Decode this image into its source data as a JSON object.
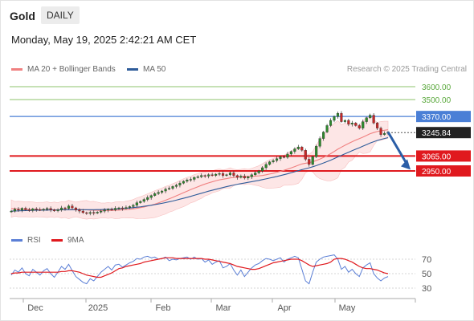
{
  "header": {
    "instrument": "Gold",
    "timeframe": "DAILY",
    "datetime": "Monday, May 19, 2025 2:42:21 AM CET"
  },
  "legend": {
    "bollinger_label": "MA 20 + Bollinger Bands",
    "ma50_label": "MA 50",
    "credit": "Research © 2025 Trading Central"
  },
  "rsi_legend": {
    "rsi_label": "RSI",
    "ma_label": "9MA"
  },
  "colors": {
    "bollinger": "#f08080",
    "ma50": "#2e5c9a",
    "resistance": "#4a7fd6",
    "support": "#e0191e",
    "target_green": "#8cc36b",
    "last_price": "#222222",
    "arrow": "#2b5ea7",
    "rsi": "#5b7fd6",
    "rsi_ma": "#e0191e"
  },
  "chart_data": [
    {
      "type": "candlestick",
      "x_labels": [
        "Dec",
        "2025",
        "Feb",
        "Mar",
        "Apr",
        "May"
      ],
      "levels": [
        {
          "value": 3600.0,
          "label": "3600.00",
          "kind": "target"
        },
        {
          "value": 3500.0,
          "label": "3500.00",
          "kind": "target"
        },
        {
          "value": 3370.0,
          "label": "3370.00",
          "kind": "resistance"
        },
        {
          "value": 3245.84,
          "label": "3245.84",
          "kind": "last"
        },
        {
          "value": 3065.0,
          "label": "3065.00",
          "kind": "support"
        },
        {
          "value": 2950.0,
          "label": "2950.00",
          "kind": "support"
        }
      ],
      "close": [
        2640,
        2655,
        2648,
        2662,
        2650,
        2645,
        2658,
        2652,
        2648,
        2655,
        2660,
        2650,
        2642,
        2650,
        2665,
        2660,
        2680,
        2665,
        2650,
        2640,
        2628,
        2622,
        2630,
        2625,
        2632,
        2640,
        2648,
        2655,
        2650,
        2662,
        2665,
        2660,
        2668,
        2675,
        2685,
        2705,
        2715,
        2730,
        2745,
        2760,
        2775,
        2785,
        2795,
        2810,
        2815,
        2830,
        2840,
        2855,
        2870,
        2880,
        2885,
        2900,
        2905,
        2915,
        2910,
        2920,
        2915,
        2925,
        2930,
        2915,
        2920,
        2935,
        2915,
        2900,
        2910,
        2895,
        2905,
        2920,
        2935,
        2950,
        2975,
        3000,
        3020,
        3030,
        3045,
        3060,
        3055,
        3080,
        3100,
        3120,
        3135,
        3110,
        3040,
        3000,
        3060,
        3140,
        3200,
        3250,
        3300,
        3340,
        3370,
        3395,
        3330,
        3340,
        3310,
        3320,
        3300,
        3280,
        3330,
        3360,
        3380,
        3320,
        3280,
        3230,
        3240,
        3250
      ],
      "ma20": [
        2660,
        2658,
        2656,
        2655,
        2654,
        2653,
        2652,
        2652,
        2651,
        2651,
        2651,
        2650,
        2650,
        2650,
        2650,
        2651,
        2652,
        2653,
        2653,
        2652,
        2651,
        2650,
        2648,
        2647,
        2646,
        2645,
        2645,
        2645,
        2645,
        2646,
        2648,
        2650,
        2652,
        2655,
        2658,
        2662,
        2667,
        2672,
        2679,
        2686,
        2694,
        2703,
        2713,
        2724,
        2735,
        2746,
        2758,
        2770,
        2782,
        2794,
        2806,
        2817,
        2828,
        2839,
        2849,
        2858,
        2866,
        2874,
        2881,
        2886,
        2891,
        2896,
        2900,
        2903,
        2905,
        2906,
        2907,
        2908,
        2910,
        2912,
        2915,
        2920,
        2926,
        2932,
        2939,
        2947,
        2955,
        2964,
        2973,
        2983,
        2994,
        3004,
        3009,
        3014,
        3021,
        3030,
        3041,
        3054,
        3068,
        3083,
        3100,
        3118,
        3133,
        3148,
        3162,
        3175,
        3188,
        3199,
        3211,
        3224,
        3237,
        3246,
        3254,
        3259,
        3264,
        3268
      ],
      "ma50": [
        2640,
        2641,
        2642,
        2643,
        2644,
        2645,
        2646,
        2647,
        2647,
        2648,
        2648,
        2649,
        2649,
        2649,
        2650,
        2650,
        2650,
        2651,
        2651,
        2651,
        2651,
        2651,
        2651,
        2651,
        2652,
        2652,
        2653,
        2654,
        2655,
        2656,
        2658,
        2660,
        2662,
        2664,
        2667,
        2670,
        2673,
        2677,
        2681,
        2685,
        2690,
        2695,
        2700,
        2706,
        2712,
        2718,
        2725,
        2732,
        2739,
        2746,
        2754,
        2762,
        2770,
        2778,
        2786,
        2794,
        2801,
        2808,
        2815,
        2822,
        2829,
        2835,
        2841,
        2847,
        2852,
        2857,
        2862,
        2867,
        2872,
        2877,
        2883,
        2889,
        2895,
        2901,
        2907,
        2914,
        2921,
        2928,
        2936,
        2944,
        2952,
        2960,
        2967,
        2974,
        2982,
        2991,
        3001,
        3011,
        3022,
        3033,
        3045,
        3058,
        3070,
        3082,
        3094,
        3106,
        3118,
        3129,
        3141,
        3153,
        3165,
        3175,
        3185,
        3193,
        3200,
        3207
      ]
    },
    {
      "type": "line",
      "name": "RSI",
      "y_ticks": [
        "70",
        "50",
        "30"
      ],
      "rsi": [
        48,
        55,
        52,
        58,
        50,
        47,
        56,
        52,
        48,
        54,
        57,
        50,
        45,
        52,
        60,
        56,
        63,
        54,
        46,
        42,
        38,
        36,
        43,
        40,
        46,
        52,
        56,
        60,
        55,
        62,
        63,
        59,
        62,
        65,
        67,
        71,
        70,
        73,
        74,
        72,
        73,
        70,
        71,
        73,
        68,
        70,
        69,
        71,
        72,
        73,
        70,
        73,
        70,
        71,
        66,
        69,
        63,
        66,
        68,
        58,
        60,
        64,
        55,
        48,
        55,
        46,
        52,
        58,
        62,
        64,
        68,
        71,
        70,
        68,
        70,
        72,
        66,
        70,
        72,
        74,
        72,
        56,
        40,
        36,
        52,
        66,
        70,
        73,
        74,
        75,
        76,
        70,
        56,
        60,
        52,
        56,
        50,
        46,
        58,
        62,
        65,
        50,
        44,
        40,
        44,
        46
      ],
      "rsi_ma": [
        50,
        51,
        51,
        52,
        52,
        52,
        52,
        52,
        52,
        52,
        52,
        52,
        52,
        52,
        53,
        53,
        54,
        54,
        53,
        52,
        50,
        48,
        47,
        46,
        45,
        45,
        47,
        49,
        51,
        54,
        57,
        58,
        60,
        61,
        62,
        63,
        64,
        66,
        67,
        68,
        69,
        70,
        71,
        72,
        72,
        72,
        71,
        71,
        71,
        71,
        71,
        71,
        71,
        71,
        70,
        70,
        69,
        68,
        67,
        66,
        65,
        64,
        62,
        60,
        59,
        58,
        57,
        56,
        56,
        57,
        59,
        61,
        63,
        65,
        66,
        67,
        68,
        69,
        70,
        70,
        70,
        68,
        65,
        62,
        60,
        61,
        62,
        63,
        64,
        66,
        70,
        71,
        71,
        70,
        68,
        66,
        63,
        60,
        58,
        57,
        57,
        56,
        55,
        53,
        51,
        50
      ]
    }
  ]
}
